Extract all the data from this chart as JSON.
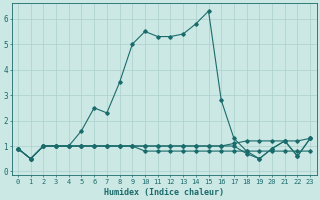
{
  "title": "",
  "xlabel": "Humidex (Indice chaleur)",
  "background_color": "#cce8e4",
  "grid_color": "#aad0cc",
  "line_color": "#1a6b6b",
  "xlim": [
    -0.5,
    23.5
  ],
  "ylim": [
    -0.15,
    6.6
  ],
  "x_ticks": [
    0,
    1,
    2,
    3,
    4,
    5,
    6,
    7,
    8,
    9,
    10,
    11,
    12,
    13,
    14,
    15,
    16,
    17,
    18,
    19,
    20,
    21,
    22,
    23
  ],
  "y_ticks": [
    0,
    1,
    2,
    3,
    4,
    5,
    6
  ],
  "series": [
    [
      0.9,
      0.5,
      1.0,
      1.0,
      1.0,
      1.6,
      2.5,
      2.3,
      3.5,
      5.0,
      5.5,
      5.3,
      5.3,
      5.4,
      5.8,
      6.3,
      2.8,
      1.3,
      0.8,
      0.5,
      0.9,
      1.2,
      0.6,
      1.3
    ],
    [
      0.9,
      0.5,
      1.0,
      1.0,
      1.0,
      1.0,
      1.0,
      1.0,
      1.0,
      1.0,
      1.0,
      1.0,
      1.0,
      1.0,
      1.0,
      1.0,
      1.0,
      1.1,
      1.2,
      1.2,
      1.2,
      1.2,
      1.2,
      1.3
    ],
    [
      0.9,
      0.5,
      1.0,
      1.0,
      1.0,
      1.0,
      1.0,
      1.0,
      1.0,
      1.0,
      1.0,
      1.0,
      1.0,
      1.0,
      1.0,
      1.0,
      1.0,
      1.0,
      0.7,
      0.5,
      0.9,
      1.2,
      0.6,
      1.3
    ],
    [
      0.9,
      0.5,
      1.0,
      1.0,
      1.0,
      1.0,
      1.0,
      1.0,
      1.0,
      1.0,
      0.8,
      0.8,
      0.8,
      0.8,
      0.8,
      0.8,
      0.8,
      0.8,
      0.8,
      0.8,
      0.8,
      0.8,
      0.8,
      0.8
    ]
  ],
  "tick_fontsize": 5,
  "xlabel_fontsize": 6,
  "marker": "D",
  "markersize": 1.8,
  "linewidth": 0.8
}
